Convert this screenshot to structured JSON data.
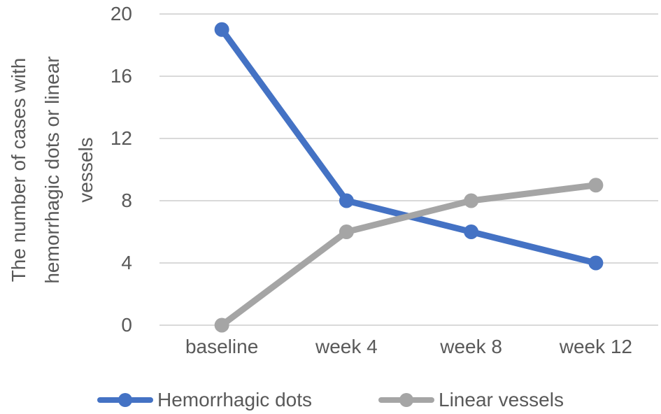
{
  "chart_data": {
    "type": "line",
    "title": "",
    "categories": [
      "baseline",
      "week 4",
      "week 8",
      "week 12"
    ],
    "series": [
      {
        "name": "Hemorrhagic dots",
        "values": [
          19,
          8,
          6,
          4
        ],
        "color": "#4472C4"
      },
      {
        "name": "Linear vessels",
        "values": [
          0,
          6,
          8,
          9
        ],
        "color": "#A5A5A5"
      }
    ],
    "xlabel": "",
    "ylabel": "The number of cases with hemorrhagic dots or linear vessels",
    "ylabel_lines": [
      "The number of cases with",
      "hemorrhagic dots or linear",
      "vessels"
    ],
    "ylim": [
      0,
      20
    ],
    "yticks": [
      0,
      4,
      8,
      12,
      16,
      20
    ],
    "grid": true,
    "legend_position": "bottom",
    "marker": "circle",
    "colors": {
      "gridline": "#D9D9D9",
      "text": "#595959",
      "background": "#FFFFFF"
    }
  }
}
